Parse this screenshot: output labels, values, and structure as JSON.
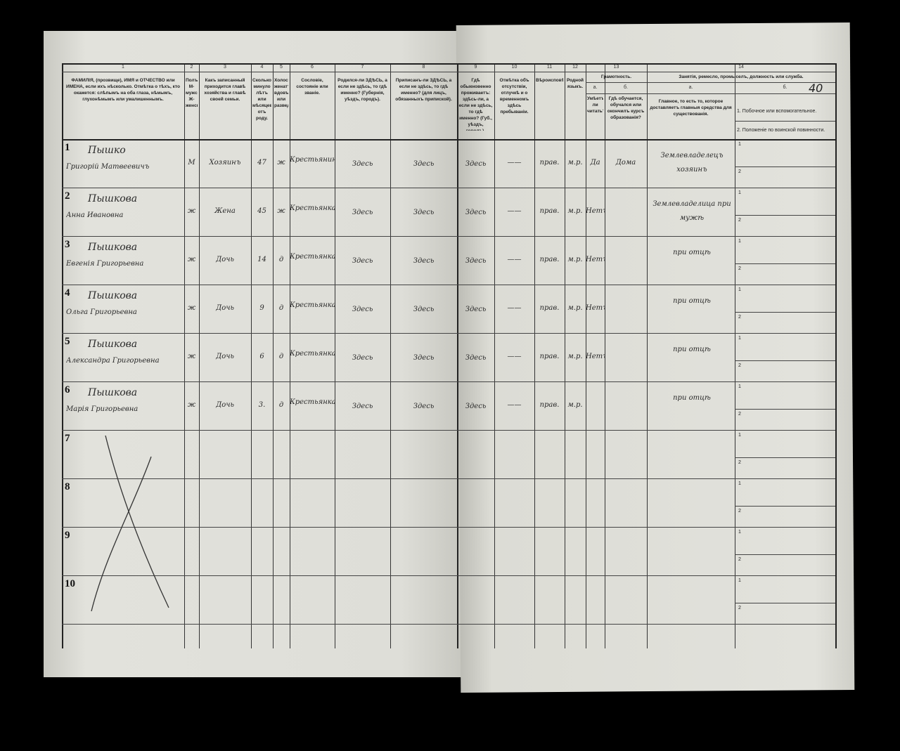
{
  "sheet_number": "40",
  "left_columns": [
    {
      "num": "1",
      "header": "ФАМИЛІЯ, (прозвище), ИМЯ и ОТЧЕСТВО или ИМЕНА, если ихъ нѣсколько. Отмѣтка о тѣхъ, кто окажется: слѣпымъ на оба глаза, нѣмымъ, глухонѣмымъ или умалишеннымъ."
    },
    {
      "num": "2",
      "header": "Полъ. М-мужской. Ж-женскій."
    },
    {
      "num": "3",
      "header": "Какъ записанный приходится главѣ хозяйства и главѣ своей семьи."
    },
    {
      "num": "4",
      "header": "Сколько минуло лѣтъ или мѣсяцевъ отъ роду."
    },
    {
      "num": "5",
      "header": "Холостъ, женатъ, вдовъ или разведенъ."
    },
    {
      "num": "6",
      "header": "Сословіе, состояніе или званіе."
    },
    {
      "num": "7",
      "header": "Родился-ли ЗДѢСЬ, а если не здѣсь, то гдѣ именно? (Губернія, уѣздъ, городъ)."
    },
    {
      "num": "8",
      "header": "Приписанъ-ли ЗДѢСЬ, а если не здѣсь, то гдѣ именно? (для лицъ, обязанныхъ припиской)."
    }
  ],
  "right_columns": [
    {
      "num": "9",
      "header": "Гдѣ обыкновенно проживаетъ: здѣсь-ли, а если не здѣсь, то гдѣ именно? (Губ., уѣздъ, городъ)."
    },
    {
      "num": "10",
      "header": "Отмѣтка объ отсутствіи, отлучкѣ и о временномъ здѣсь пребываніи."
    },
    {
      "num": "11",
      "header": "Вѣроисповѣданіе."
    },
    {
      "num": "12",
      "header": "Родной языкъ."
    },
    {
      "num": "13а",
      "header": "Умѣетъ-ли читать?"
    },
    {
      "num": "13б",
      "header": "Гдѣ обучается, обучался или окончилъ курсъ образованія?"
    },
    {
      "num": "14а",
      "header": "Главное, то есть то, которое доставляетъ главныя средства для существованія."
    },
    {
      "num": "14б",
      "header": ""
    }
  ],
  "group_headers": {
    "c13_num": "13",
    "c13": "Грамотность.",
    "c14_num": "14",
    "c14": "Занятія, ремесло, промыселъ, должность или служба.",
    "a": "а.",
    "b": "б."
  },
  "col14b_lines": [
    "1. Побочное или вспомогательное.",
    "2. Положеніе по воинской повинности."
  ],
  "sub_labels": [
    "1",
    "2"
  ],
  "rows": [
    {
      "n": "1",
      "surname": "Пышко",
      "given": "Григорій Матвеевичъ",
      "sex": "М",
      "relation": "Хозяинъ",
      "age": "47",
      "marital": "ж",
      "estate": "Крестьянинъ",
      "born": "Здесь",
      "registered": "Здесь",
      "resides": "Здесь",
      "absence": "——",
      "religion": "прав.",
      "language": "м.р.",
      "literate": "Да",
      "education": "Дома",
      "occupation": "Землевладелецъ хозяинъ"
    },
    {
      "n": "2",
      "surname": "Пышкова",
      "given": "Анна Ивановна",
      "sex": "ж",
      "relation": "Жена",
      "age": "45",
      "marital": "ж",
      "estate": "Крестьянка",
      "born": "Здесь",
      "registered": "Здесь",
      "resides": "Здесь",
      "absence": "——",
      "religion": "прав.",
      "language": "м.р.",
      "literate": "Нетъ",
      "education": "",
      "occupation": "Землевладелица при мужѣ"
    },
    {
      "n": "3",
      "surname": "Пышкова",
      "given": "Евгенія Григорьевна",
      "sex": "ж",
      "relation": "Дочь",
      "age": "14",
      "marital": "д",
      "estate": "Крестьянка",
      "born": "Здесь",
      "registered": "Здесь",
      "resides": "Здесь",
      "absence": "——",
      "religion": "прав.",
      "language": "м.р.",
      "literate": "Нетъ",
      "education": "",
      "occupation": "при отцѣ"
    },
    {
      "n": "4",
      "surname": "Пышкова",
      "given": "Ольга Григорьевна",
      "sex": "ж",
      "relation": "Дочь",
      "age": "9",
      "marital": "д",
      "estate": "Крестьянка",
      "born": "Здесь",
      "registered": "Здесь",
      "resides": "Здесь",
      "absence": "——",
      "religion": "прав.",
      "language": "м.р.",
      "literate": "Нетъ",
      "education": "",
      "occupation": "при отцѣ"
    },
    {
      "n": "5",
      "surname": "Пышкова",
      "given": "Александра Григорьевна",
      "sex": "ж",
      "relation": "Дочь",
      "age": "6",
      "marital": "д",
      "estate": "Крестьянка",
      "born": "Здесь",
      "registered": "Здесь",
      "resides": "Здесь",
      "absence": "——",
      "religion": "прав.",
      "language": "м.р.",
      "literate": "Нетъ",
      "education": "",
      "occupation": "при отцѣ"
    },
    {
      "n": "6",
      "surname": "Пышкова",
      "given": "Марія Григорьевна",
      "sex": "ж",
      "relation": "Дочь",
      "age": "3.",
      "marital": "д",
      "estate": "Крестьянка",
      "born": "Здесь",
      "registered": "Здесь",
      "resides": "Здесь",
      "absence": "——",
      "religion": "прав.",
      "language": "м.р.",
      "literate": "",
      "education": "",
      "occupation": "при отцѣ"
    },
    {
      "n": "7"
    },
    {
      "n": "8"
    },
    {
      "n": "9"
    },
    {
      "n": "10"
    }
  ]
}
